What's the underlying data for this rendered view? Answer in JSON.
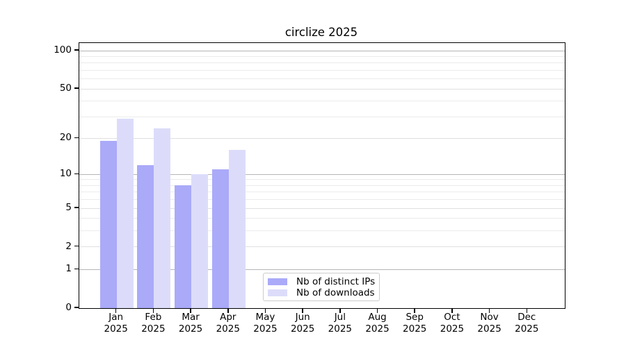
{
  "chart_data": {
    "type": "bar",
    "title": "circlize 2025",
    "categories": [
      "Jan",
      "Feb",
      "Mar",
      "Apr",
      "May",
      "Jun",
      "Jul",
      "Aug",
      "Sep",
      "Oct",
      "Nov",
      "Dec"
    ],
    "year": "2025",
    "series": [
      {
        "name": "Nb of distinct IPs",
        "color": "#aaaaf9",
        "values": [
          19,
          12,
          8,
          11,
          null,
          null,
          null,
          null,
          null,
          null,
          null,
          null
        ]
      },
      {
        "name": "Nb of downloads",
        "color": "#dcdcfa",
        "values": [
          29,
          24,
          10,
          16,
          null,
          null,
          null,
          null,
          null,
          null,
          null,
          null
        ]
      }
    ],
    "y_ticks": [
      0,
      1,
      2,
      5,
      10,
      20,
      50,
      100
    ],
    "minor_gridline_values": [
      3,
      4,
      6,
      7,
      8,
      9,
      30,
      40,
      60,
      70,
      80,
      90
    ],
    "ylim": [
      0,
      115
    ],
    "yscale": "log1p",
    "xlabel": "",
    "ylabel": "",
    "grid": true,
    "legend_position": "bottom-center-inside",
    "colors": {
      "decade_gridline": "#b5b5b5",
      "major_gridline": "#e0e0e0",
      "minor_gridline": "#ebebeb",
      "axis": "#000000",
      "background": "#ffffff"
    }
  }
}
